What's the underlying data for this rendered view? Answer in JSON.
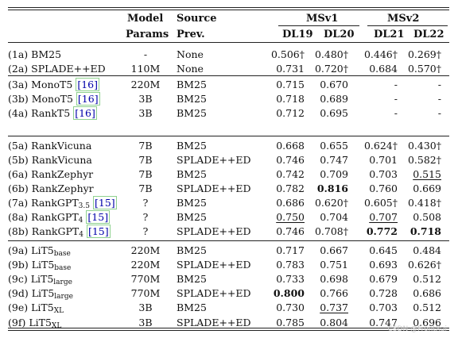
{
  "header": {
    "model_l1": "Model",
    "model_l2": "Params",
    "source_l1": "Source",
    "source_l2": "Prev.",
    "msv1": "MSv1",
    "msv2": "MSv2",
    "dl19": "DL19",
    "dl20": "DL20",
    "dl21": "DL21",
    "dl22": "DL22"
  },
  "rows": [
    {
      "id": "(1a)",
      "name": "BM25",
      "sub": "",
      "cite": "",
      "params": "-",
      "src": "None",
      "v": [
        "0.506†",
        "0.480†",
        "0.446†",
        "0.269†"
      ],
      "bold": [],
      "ul": [],
      "group": 0
    },
    {
      "id": "(2a)",
      "name": "SPLADE++ED",
      "sub": "",
      "cite": "",
      "params": "110M",
      "src": "None",
      "v": [
        "0.731",
        "0.720†",
        "0.684",
        "0.570†"
      ],
      "bold": [],
      "ul": [],
      "group": 0
    },
    {
      "id": "(3a)",
      "name": "MonoT5",
      "sub": "",
      "cite": "16",
      "params": "220M",
      "src": "BM25",
      "v": [
        "0.715",
        "0.670",
        "-",
        "-"
      ],
      "bold": [],
      "ul": [],
      "group": 1
    },
    {
      "id": "(3b)",
      "name": "MonoT5",
      "sub": "",
      "cite": "16",
      "params": "3B",
      "src": "BM25",
      "v": [
        "0.718",
        "0.689",
        "-",
        "-"
      ],
      "bold": [],
      "ul": [],
      "group": 1
    },
    {
      "id": "(4a)",
      "name": "RankT5",
      "sub": "",
      "cite": "16",
      "params": "3B",
      "src": "BM25",
      "v": [
        "0.712",
        "0.695",
        "-",
        "-"
      ],
      "bold": [],
      "ul": [],
      "group": 1
    },
    {
      "id": "(5a)",
      "name": "RankVicuna",
      "sub": "",
      "cite": "",
      "params": "7B",
      "src": "BM25",
      "v": [
        "0.668",
        "0.655",
        "0.624†",
        "0.430†"
      ],
      "bold": [],
      "ul": [],
      "group": 2
    },
    {
      "id": "(5b)",
      "name": "RankVicuna",
      "sub": "",
      "cite": "",
      "params": "7B",
      "src": "SPLADE++ED",
      "v": [
        "0.746",
        "0.747",
        "0.701",
        "0.582†"
      ],
      "bold": [],
      "ul": [],
      "group": 2
    },
    {
      "id": "(6a)",
      "name": "RankZephyr",
      "sub": "",
      "cite": "",
      "params": "7B",
      "src": "BM25",
      "v": [
        "0.742",
        "0.709",
        "0.703",
        "0.515"
      ],
      "bold": [],
      "ul": [
        3
      ],
      "group": 2
    },
    {
      "id": "(6b)",
      "name": "RankZephyr",
      "sub": "",
      "cite": "",
      "params": "7B",
      "src": "SPLADE++ED",
      "v": [
        "0.782",
        "0.816",
        "0.760",
        "0.669"
      ],
      "bold": [
        1
      ],
      "ul": [],
      "group": 2
    },
    {
      "id": "(7a)",
      "name": "RankGPT",
      "sub": "3.5",
      "cite": "15",
      "params": "?",
      "src": "BM25",
      "v": [
        "0.686",
        "0.620†",
        "0.605†",
        "0.418†"
      ],
      "bold": [],
      "ul": [],
      "group": 2
    },
    {
      "id": "(8a)",
      "name": "RankGPT",
      "sub": "4",
      "cite": "15",
      "params": "?",
      "src": "BM25",
      "v": [
        "0.750",
        "0.704",
        "0.707",
        "0.508"
      ],
      "bold": [],
      "ul": [
        0,
        2
      ],
      "group": 2
    },
    {
      "id": "(8b)",
      "name": "RankGPT",
      "sub": "4",
      "cite": "15",
      "params": "?",
      "src": "SPLADE++ED",
      "v": [
        "0.746",
        "0.708†",
        "0.772",
        "0.718"
      ],
      "bold": [
        2,
        3
      ],
      "ul": [],
      "group": 2
    },
    {
      "id": "(9a)",
      "name": "LiT5",
      "sub": "base",
      "cite": "",
      "params": "220M",
      "src": "BM25",
      "v": [
        "0.717",
        "0.667",
        "0.645",
        "0.484"
      ],
      "bold": [],
      "ul": [],
      "group": 3
    },
    {
      "id": "(9b)",
      "name": "LiT5",
      "sub": "base",
      "cite": "",
      "params": "220M",
      "src": "SPLADE++ED",
      "v": [
        "0.783",
        "0.751",
        "0.693",
        "0.626†"
      ],
      "bold": [],
      "ul": [],
      "group": 3
    },
    {
      "id": "(9c)",
      "name": "LiT5",
      "sub": "large",
      "cite": "",
      "params": "770M",
      "src": "BM25",
      "v": [
        "0.733",
        "0.698",
        "0.679",
        "0.512"
      ],
      "bold": [],
      "ul": [],
      "group": 3
    },
    {
      "id": "(9d)",
      "name": "LiT5",
      "sub": "large",
      "cite": "",
      "params": "770M",
      "src": "SPLADE++ED",
      "v": [
        "0.800",
        "0.766",
        "0.728",
        "0.686"
      ],
      "bold": [
        0
      ],
      "ul": [],
      "group": 3
    },
    {
      "id": "(9e)",
      "name": "LiT5",
      "sub": "XL",
      "cite": "",
      "params": "3B",
      "src": "BM25",
      "v": [
        "0.730",
        "0.737",
        "0.703",
        "0.512"
      ],
      "bold": [],
      "ul": [
        1
      ],
      "group": 3
    },
    {
      "id": "(9f)",
      "name": "LiT5",
      "sub": "XL",
      "cite": "",
      "params": "3B",
      "src": "SPLADE++ED",
      "v": [
        "0.785",
        "0.804",
        "0.747",
        "0.696"
      ],
      "bold": [],
      "ul": [],
      "group": 3
    }
  ],
  "watermark": "CSDN @FrontXai"
}
